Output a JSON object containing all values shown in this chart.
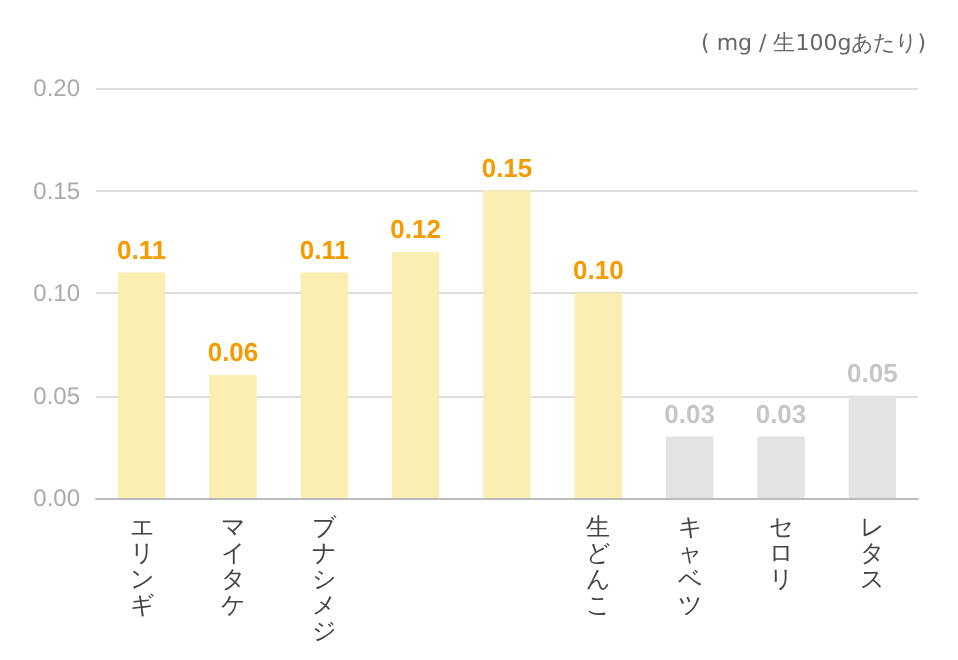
{
  "chart_data": {
    "type": "bar",
    "annotations": [
      "( mg / 生100gあたり)"
    ],
    "categories": [
      "エリンギ",
      "マイタケ",
      "ブナシメジ",
      null,
      null,
      "生どんこ",
      "キャベツ",
      "セロリ",
      "レタス"
    ],
    "values": [
      0.11,
      0.06,
      0.11,
      0.12,
      0.15,
      0.1,
      0.03,
      0.03,
      0.05
    ],
    "colors": [
      "#faeeb0",
      "#faeeb0",
      "#faeeb0",
      "#faeeb0",
      "#faeeb0",
      "#faeeb0",
      "#e3e3e3",
      "#e3e3e3",
      "#e3e3e3"
    ],
    "value_labels": [
      "0.11",
      "0.06",
      "0.11",
      "0.12",
      "0.15",
      "0.10",
      "0.03",
      "0.03",
      "0.05"
    ],
    "ylim": [
      0,
      0.2
    ],
    "yticks": [
      {
        "value": 0,
        "label": "0.00"
      },
      {
        "value": 0.05,
        "label": "0.05"
      },
      {
        "value": 0.1,
        "label": "0.10"
      },
      {
        "value": 0.15,
        "label": "0.15"
      },
      {
        "value": 0.2,
        "label": "0.20"
      }
    ],
    "grid": "y"
  }
}
